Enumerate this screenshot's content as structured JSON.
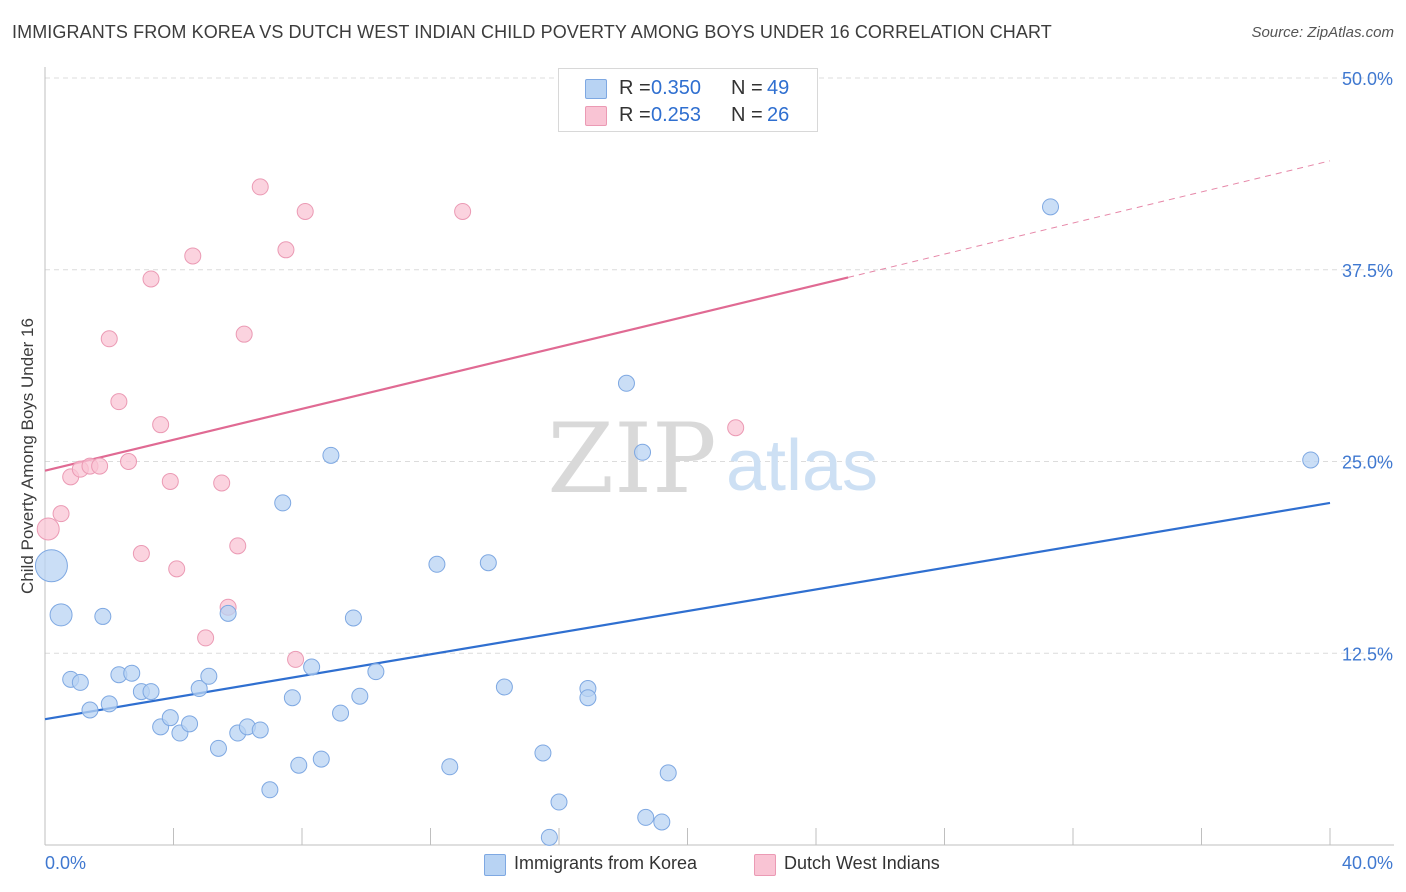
{
  "title": "IMMIGRANTS FROM KOREA VS DUTCH WEST INDIAN CHILD POVERTY AMONG BOYS UNDER 16 CORRELATION CHART",
  "source": "Source: ZipAtlas.com",
  "watermark": {
    "zip": "ZIP",
    "atlas": "atlas"
  },
  "colors": {
    "korea_fill": "#b8d3f3",
    "korea_stroke": "#7ea8e2",
    "korea_line": "#2f6fd0",
    "dutch_fill": "#f9c4d4",
    "dutch_stroke": "#eb9ab4",
    "dutch_line": "#e06a93",
    "axis_text": "#3f78d0",
    "grid": "#dcdcdc"
  },
  "legend": {
    "rows": [
      {
        "r_label": "R =",
        "r_value": "0.350",
        "n_label": "N =",
        "n_value": "49",
        "series": "korea"
      },
      {
        "r_label": "R =",
        "r_value": "0.253",
        "n_label": "N =",
        "n_value": "26",
        "series": "dutch"
      }
    ]
  },
  "bottom_legend": [
    {
      "label": "Immigrants from Korea",
      "series": "korea"
    },
    {
      "label": "Dutch West Indians",
      "series": "dutch"
    }
  ],
  "chart_data": {
    "type": "scatter",
    "title": "IMMIGRANTS FROM KOREA VS DUTCH WEST INDIAN CHILD POVERTY AMONG BOYS UNDER 16 CORRELATION CHART",
    "xlabel": "",
    "ylabel": "Child Poverty Among Boys Under 16",
    "xlim": [
      0,
      40
    ],
    "ylim": [
      0,
      50
    ],
    "x_tick_labels": [
      "0.0%",
      "40.0%"
    ],
    "y_ticks": [
      12.5,
      25.0,
      37.5,
      50.0
    ],
    "y_tick_labels": [
      "12.5%",
      "25.0%",
      "37.5%",
      "50.0%"
    ],
    "grid": true,
    "legend_placement": "top-center",
    "series": [
      {
        "name": "Immigrants from Korea",
        "key": "korea",
        "r": 0.35,
        "n": 49,
        "trend": {
          "x0": 0,
          "y0": 8.2,
          "x1": 40,
          "y1": 22.3
        },
        "points": [
          {
            "x": 0.2,
            "y": 18.2,
            "s": "large"
          },
          {
            "x": 0.5,
            "y": 15.0,
            "s": "medium"
          },
          {
            "x": 0.8,
            "y": 10.8
          },
          {
            "x": 1.1,
            "y": 10.6
          },
          {
            "x": 1.4,
            "y": 8.8
          },
          {
            "x": 1.8,
            "y": 14.9
          },
          {
            "x": 2.0,
            "y": 9.2
          },
          {
            "x": 2.3,
            "y": 11.1
          },
          {
            "x": 2.7,
            "y": 11.2
          },
          {
            "x": 3.0,
            "y": 10.0
          },
          {
            "x": 3.3,
            "y": 10.0
          },
          {
            "x": 3.6,
            "y": 7.7
          },
          {
            "x": 3.9,
            "y": 8.3
          },
          {
            "x": 4.2,
            "y": 7.3
          },
          {
            "x": 4.5,
            "y": 7.9
          },
          {
            "x": 4.8,
            "y": 10.2
          },
          {
            "x": 5.1,
            "y": 11.0
          },
          {
            "x": 5.4,
            "y": 6.3
          },
          {
            "x": 5.7,
            "y": 15.1
          },
          {
            "x": 6.0,
            "y": 7.3
          },
          {
            "x": 6.3,
            "y": 7.7
          },
          {
            "x": 6.7,
            "y": 7.5
          },
          {
            "x": 7.0,
            "y": 3.6
          },
          {
            "x": 7.4,
            "y": 22.3
          },
          {
            "x": 7.7,
            "y": 9.6
          },
          {
            "x": 7.9,
            "y": 5.2
          },
          {
            "x": 8.3,
            "y": 11.6
          },
          {
            "x": 8.6,
            "y": 5.6
          },
          {
            "x": 8.9,
            "y": 25.4
          },
          {
            "x": 9.2,
            "y": 8.6
          },
          {
            "x": 9.6,
            "y": 14.8
          },
          {
            "x": 9.8,
            "y": 9.7
          },
          {
            "x": 10.3,
            "y": 11.3
          },
          {
            "x": 12.2,
            "y": 18.3
          },
          {
            "x": 12.6,
            "y": 5.1
          },
          {
            "x": 13.8,
            "y": 18.4
          },
          {
            "x": 14.3,
            "y": 10.3
          },
          {
            "x": 15.5,
            "y": 6.0
          },
          {
            "x": 15.7,
            "y": 0.5
          },
          {
            "x": 16.0,
            "y": 2.8
          },
          {
            "x": 16.9,
            "y": 10.2
          },
          {
            "x": 16.9,
            "y": 9.6
          },
          {
            "x": 18.1,
            "y": 30.1
          },
          {
            "x": 18.6,
            "y": 25.6
          },
          {
            "x": 18.7,
            "y": 1.8
          },
          {
            "x": 19.2,
            "y": 1.5
          },
          {
            "x": 19.4,
            "y": 4.7
          },
          {
            "x": 31.3,
            "y": 41.6
          },
          {
            "x": 39.4,
            "y": 25.1
          }
        ]
      },
      {
        "name": "Dutch West Indians",
        "key": "dutch",
        "r": 0.253,
        "n": 26,
        "trend": {
          "x0": 0,
          "y0": 24.4,
          "x1": 25,
          "y1": 37.0,
          "dashed_to_x": 40,
          "dashed_to_y": 44.6
        },
        "points": [
          {
            "x": 0.1,
            "y": 20.6,
            "s": "medium"
          },
          {
            "x": 0.5,
            "y": 21.6
          },
          {
            "x": 0.8,
            "y": 24.0
          },
          {
            "x": 1.1,
            "y": 24.5
          },
          {
            "x": 1.4,
            "y": 24.7
          },
          {
            "x": 1.7,
            "y": 24.7
          },
          {
            "x": 2.0,
            "y": 33.0
          },
          {
            "x": 2.3,
            "y": 28.9
          },
          {
            "x": 2.6,
            "y": 25.0
          },
          {
            "x": 3.0,
            "y": 19.0
          },
          {
            "x": 3.3,
            "y": 36.9
          },
          {
            "x": 3.6,
            "y": 27.4
          },
          {
            "x": 3.9,
            "y": 23.7
          },
          {
            "x": 4.1,
            "y": 18.0
          },
          {
            "x": 4.6,
            "y": 38.4
          },
          {
            "x": 5.0,
            "y": 13.5
          },
          {
            "x": 5.5,
            "y": 23.6
          },
          {
            "x": 5.7,
            "y": 15.5
          },
          {
            "x": 6.0,
            "y": 19.5
          },
          {
            "x": 6.2,
            "y": 33.3
          },
          {
            "x": 6.7,
            "y": 42.9
          },
          {
            "x": 7.5,
            "y": 38.8
          },
          {
            "x": 7.8,
            "y": 12.1
          },
          {
            "x": 8.1,
            "y": 41.3
          },
          {
            "x": 13.0,
            "y": 41.3
          },
          {
            "x": 21.5,
            "y": 27.2
          }
        ]
      }
    ]
  }
}
